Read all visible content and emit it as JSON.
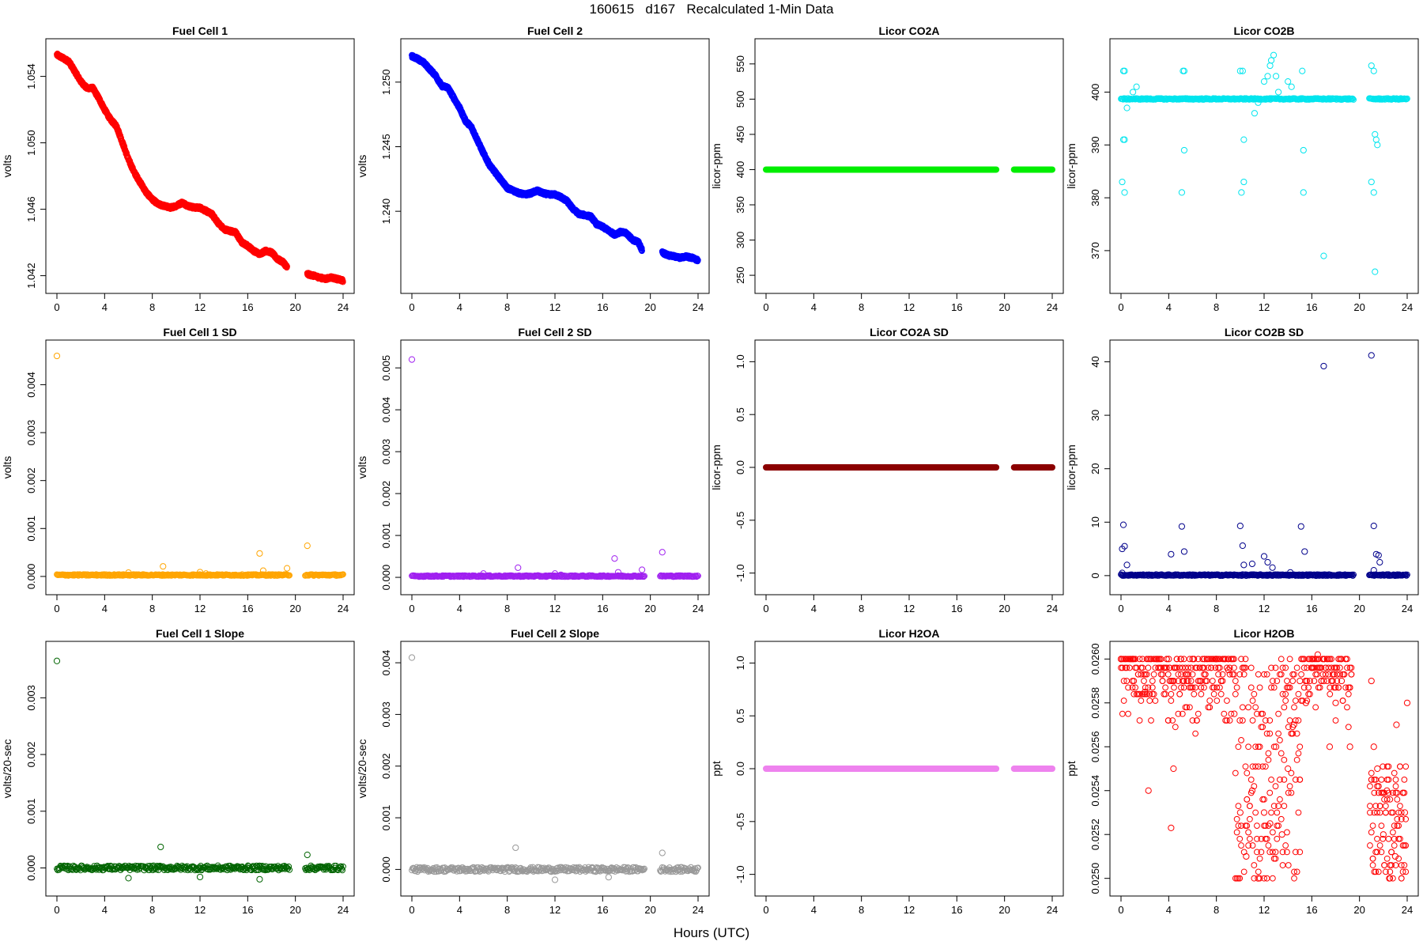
{
  "page": {
    "title": "160615   d167   Recalculated 1-Min Data",
    "xcaption": "Hours (UTC)"
  },
  "chart_data": [
    {
      "id": "fc1",
      "type": "scatter",
      "title": "Fuel Cell 1",
      "ylabel": "volts",
      "color": "#ff0000",
      "xlim": [
        0,
        24
      ],
      "ylim": [
        1.0416,
        1.0556
      ],
      "xticks": [
        "0",
        "4",
        "8",
        "12",
        "16",
        "20",
        "24"
      ],
      "yticks": [
        1.042,
        1.046,
        1.05,
        1.054
      ],
      "ytick_labels": [
        "1.042",
        "1.046",
        "1.050",
        "1.054"
      ],
      "x": [
        0,
        0.5,
        1,
        1.5,
        2,
        2.5,
        3,
        3.5,
        4,
        4.5,
        5,
        5.5,
        6,
        6.5,
        7,
        7.5,
        8,
        8.5,
        9,
        9.5,
        10,
        10.5,
        11,
        11.5,
        12,
        12.5,
        13,
        13.5,
        14,
        14.5,
        15,
        15.5,
        16,
        16.5,
        17,
        17.5,
        18,
        18.5,
        19,
        19.3,
        21,
        21.5,
        22,
        22.5,
        23,
        23.5,
        24
      ],
      "y": [
        1.0553,
        1.0551,
        1.0549,
        1.0543,
        1.0537,
        1.0533,
        1.0533,
        1.0527,
        1.052,
        1.0514,
        1.051,
        1.05,
        1.049,
        1.0482,
        1.0476,
        1.047,
        1.0466,
        1.0463,
        1.0462,
        1.0461,
        1.0462,
        1.0464,
        1.0462,
        1.0461,
        1.0461,
        1.0459,
        1.0457,
        1.0452,
        1.0448,
        1.0447,
        1.0446,
        1.044,
        1.0438,
        1.0435,
        1.0433,
        1.0435,
        1.0434,
        1.043,
        1.0428,
        1.0425,
        1.0421,
        1.042,
        1.0419,
        1.0418,
        1.0419,
        1.0418,
        1.0417
      ]
    },
    {
      "id": "fc2",
      "type": "scatter",
      "title": "Fuel Cell 2",
      "ylabel": "volts",
      "color": "#0000ff",
      "xlim": [
        0,
        24
      ],
      "ylim": [
        1.2345,
        1.2525
      ],
      "xticks": [
        "0",
        "4",
        "8",
        "12",
        "16",
        "20",
        "24"
      ],
      "yticks": [
        1.24,
        1.245,
        1.25
      ],
      "ytick_labels": [
        "1.240",
        "1.245",
        "1.250"
      ],
      "x": [
        0,
        0.5,
        1,
        1.5,
        2,
        2.5,
        3,
        3.5,
        4,
        4.5,
        5,
        5.5,
        6,
        6.5,
        7,
        7.5,
        8,
        8.5,
        9,
        9.5,
        10,
        10.5,
        11,
        11.5,
        12,
        12.5,
        13,
        13.5,
        14,
        14.5,
        15,
        15.5,
        16,
        16.5,
        17,
        17.5,
        18,
        18.5,
        19,
        19.3,
        21,
        21.5,
        22,
        22.5,
        23,
        23.5,
        24
      ],
      "y": [
        1.252,
        1.2518,
        1.2515,
        1.251,
        1.2505,
        1.2497,
        1.2496,
        1.2488,
        1.248,
        1.247,
        1.2465,
        1.2455,
        1.2445,
        1.2436,
        1.243,
        1.2424,
        1.2418,
        1.2416,
        1.2414,
        1.2413,
        1.2414,
        1.2416,
        1.2414,
        1.2413,
        1.2413,
        1.2411,
        1.2408,
        1.2402,
        1.2398,
        1.2397,
        1.2396,
        1.239,
        1.2388,
        1.2385,
        1.2382,
        1.2384,
        1.2383,
        1.2378,
        1.2376,
        1.237,
        1.2368,
        1.2366,
        1.2365,
        1.2364,
        1.2365,
        1.2364,
        1.2362
      ]
    },
    {
      "id": "co2a",
      "type": "scatter",
      "title": "Licor CO2A",
      "ylabel": "licor-ppm",
      "color": "#00ee00",
      "xlim": [
        0,
        24
      ],
      "ylim": [
        240,
        570
      ],
      "xticks": [
        "0",
        "4",
        "8",
        "12",
        "16",
        "20",
        "24"
      ],
      "yticks": [
        250,
        300,
        350,
        400,
        450,
        500,
        550
      ],
      "ytick_labels": [
        "250",
        "300",
        "350",
        "400",
        "450",
        "500",
        "550"
      ],
      "segments": [
        {
          "x0": 0,
          "x1": 19.3,
          "y": 400
        },
        {
          "x0": 20.8,
          "x1": 24,
          "y": 400
        }
      ]
    },
    {
      "id": "co2b",
      "type": "scatter",
      "title": "Licor CO2B",
      "ylabel": "licor-ppm",
      "color": "#00e5ee",
      "xlim": [
        0,
        24
      ],
      "ylim": [
        364,
        408
      ],
      "xticks": [
        "0",
        "4",
        "8",
        "12",
        "16",
        "20",
        "24"
      ],
      "yticks": [
        370,
        380,
        390,
        400
      ],
      "ytick_labels": [
        "370",
        "380",
        "390",
        "400"
      ],
      "baseline": {
        "x0": 0,
        "x1": 24,
        "y": 398.7,
        "gap": [
          19.5,
          20.8
        ]
      },
      "x": [
        0.2,
        0.3,
        0.2,
        0.3,
        0.3,
        0.5,
        0.1,
        1.0,
        1.3,
        5.2,
        5.3,
        5.1,
        5.3,
        10.0,
        10.2,
        10.3,
        10.1,
        10.3,
        11.2,
        11.5,
        12.0,
        12.3,
        12.5,
        12.6,
        12.8,
        13.0,
        13.2,
        14.0,
        14.3,
        15.2,
        15.3,
        15.3,
        17.0,
        21.0,
        21.2,
        21.3,
        21.4,
        21.5,
        21.2,
        21.0,
        21.3
      ],
      "y": [
        404,
        404,
        391,
        391,
        381,
        397,
        383,
        400,
        401,
        404,
        404,
        381,
        389,
        404,
        404,
        391,
        381,
        383,
        396,
        398,
        402,
        403,
        405,
        406,
        407,
        403,
        400,
        402,
        401,
        404,
        381,
        389,
        369,
        405,
        404,
        392,
        391,
        390,
        381,
        383,
        366
      ]
    },
    {
      "id": "fc1sd",
      "type": "scatter",
      "title": "Fuel Cell 1 SD",
      "ylabel": "volts",
      "color": "#ffa500",
      "xlim": [
        0,
        24
      ],
      "ylim": [
        -0.00015,
        0.0047
      ],
      "xticks": [
        "0",
        "4",
        "8",
        "12",
        "16",
        "20",
        "24"
      ],
      "yticks": [
        0,
        0.001,
        0.002,
        0.003,
        0.004
      ],
      "ytick_labels": [
        "0.000",
        "0.001",
        "0.002",
        "0.003",
        "0.004"
      ],
      "baseline": {
        "x0": 0,
        "x1": 24,
        "y": 3e-05,
        "gap": [
          19.5,
          20.8
        ]
      },
      "x": [
        0,
        6,
        8.9,
        12,
        17,
        17.3,
        19.3,
        21,
        12.5
      ],
      "y": [
        0.0046,
        8e-05,
        0.00021,
        9e-05,
        0.00048,
        0.00012,
        0.00017,
        0.00064,
        6e-05
      ]
    },
    {
      "id": "fc2sd",
      "type": "scatter",
      "title": "Fuel Cell 2 SD",
      "ylabel": "volts",
      "color": "#a020f0",
      "xlim": [
        0,
        24
      ],
      "ylim": [
        -0.00015,
        0.0054
      ],
      "xticks": [
        "0",
        "4",
        "8",
        "12",
        "16",
        "20",
        "24"
      ],
      "yticks": [
        0,
        0.001,
        0.002,
        0.003,
        0.004,
        0.005
      ],
      "ytick_labels": [
        "0.000",
        "0.001",
        "0.002",
        "0.003",
        "0.004",
        "0.005"
      ],
      "baseline": {
        "x0": 0,
        "x1": 24,
        "y": 3e-05,
        "gap": [
          19.5,
          20.8
        ]
      },
      "x": [
        0,
        6,
        8.9,
        12,
        17,
        17.3,
        19.3,
        21,
        12.5
      ],
      "y": [
        0.0052,
        9e-05,
        0.00023,
        9e-05,
        0.00045,
        0.00012,
        0.00018,
        0.0006,
        6e-05
      ]
    },
    {
      "id": "co2asd",
      "type": "scatter",
      "title": "Licor CO2A SD",
      "ylabel": "licor-ppm",
      "color": "#8b0000",
      "xlim": [
        0,
        24
      ],
      "ylim": [
        -1.1,
        1.1
      ],
      "xticks": [
        "0",
        "4",
        "8",
        "12",
        "16",
        "20",
        "24"
      ],
      "yticks": [
        -1,
        -0.5,
        0,
        0.5,
        1
      ],
      "ytick_labels": [
        "-1.0",
        "-0.5",
        "0.0",
        "0.5",
        "1.0"
      ],
      "segments": [
        {
          "x0": 0,
          "x1": 19.3,
          "y": 0
        },
        {
          "x0": 20.8,
          "x1": 24,
          "y": 0
        }
      ]
    },
    {
      "id": "co2bsd",
      "type": "scatter",
      "title": "Licor CO2B SD",
      "ylabel": "licor-ppm",
      "color": "#00008b",
      "xlim": [
        0,
        24
      ],
      "ylim": [
        -1.5,
        42
      ],
      "xticks": [
        "0",
        "4",
        "8",
        "12",
        "16",
        "20",
        "24"
      ],
      "yticks": [
        0,
        10,
        20,
        30,
        40
      ],
      "ytick_labels": [
        "0",
        "10",
        "20",
        "30",
        "40"
      ],
      "baseline": {
        "x0": 0,
        "x1": 24,
        "y": 0.1,
        "gap": [
          19.5,
          20.8
        ]
      },
      "x": [
        0.1,
        0.2,
        0.3,
        0.5,
        0.1,
        4.2,
        5.1,
        5.3,
        10.0,
        10.2,
        10.3,
        11.0,
        12.0,
        12.3,
        12.7,
        14.2,
        15.1,
        15.4,
        17.0,
        21.0,
        21.2,
        21.4,
        21.6,
        21.7,
        21.2
      ],
      "y": [
        5,
        9.5,
        5.5,
        2,
        0.5,
        4,
        9.2,
        4.5,
        9.3,
        5.6,
        2,
        2.2,
        3.6,
        2.5,
        1.5,
        0.6,
        9.2,
        4.5,
        39.2,
        41.2,
        9.3,
        4,
        3.8,
        2.5,
        1
      ]
    },
    {
      "id": "fc1slope",
      "type": "scatter",
      "title": "Fuel Cell 1 Slope",
      "ylabel": "volts/20-sec",
      "color": "#006400",
      "xlim": [
        0,
        24
      ],
      "ylim": [
        -0.0003,
        0.0038
      ],
      "xticks": [
        "0",
        "4",
        "8",
        "12",
        "16",
        "20",
        "24"
      ],
      "yticks": [
        0,
        0.001,
        0.002,
        0.003
      ],
      "ytick_labels": [
        "0.000",
        "0.001",
        "0.002",
        "0.003"
      ],
      "baseline": {
        "x0": 0,
        "x1": 24,
        "y": 0,
        "gap": [
          19.5,
          20.8
        ]
      },
      "x": [
        0,
        8.7,
        21,
        6,
        12,
        17
      ],
      "y": [
        0.00365,
        0.00037,
        0.00023,
        -0.00018,
        -0.00016,
        -0.0002
      ]
    },
    {
      "id": "fc2slope",
      "type": "scatter",
      "title": "Fuel Cell 2 Slope",
      "ylabel": "volts/20-sec",
      "color": "#999999",
      "xlim": [
        0,
        24
      ],
      "ylim": [
        -0.0003,
        0.0042
      ],
      "xticks": [
        "0",
        "4",
        "8",
        "12",
        "16",
        "20",
        "24"
      ],
      "yticks": [
        0,
        0.001,
        0.002,
        0.003,
        0.004
      ],
      "ytick_labels": [
        "0.000",
        "0.001",
        "0.002",
        "0.003",
        "0.004"
      ],
      "baseline": {
        "x0": 0,
        "x1": 24,
        "y": 0,
        "gap": [
          19.5,
          20.8
        ]
      },
      "x": [
        0,
        8.7,
        21,
        12,
        16.5
      ],
      "y": [
        0.0041,
        0.00042,
        0.00032,
        -0.0002,
        -0.00015
      ]
    },
    {
      "id": "h2oa",
      "type": "scatter",
      "title": "Licor H2OA",
      "ylabel": "ppt",
      "color": "#ee82ee",
      "xlim": [
        0,
        24
      ],
      "ylim": [
        -1.1,
        1.1
      ],
      "xticks": [
        "0",
        "4",
        "8",
        "12",
        "16",
        "20",
        "24"
      ],
      "yticks": [
        -1,
        -0.5,
        0,
        0.5,
        1
      ],
      "ytick_labels": [
        "-1.0",
        "-0.5",
        "0.0",
        "0.5",
        "1.0"
      ],
      "segments": [
        {
          "x0": 0,
          "x1": 19.3,
          "y": 0
        },
        {
          "x0": 20.8,
          "x1": 24,
          "y": 0
        }
      ]
    },
    {
      "id": "h2ob",
      "type": "scatter",
      "title": "Licor H2OB",
      "ylabel": "ppt",
      "color": "#ff0000",
      "xlim": [
        0,
        24
      ],
      "ylim": [
        0.02497,
        0.02603
      ],
      "xticks": [
        "0",
        "4",
        "8",
        "12",
        "16",
        "20",
        "24"
      ],
      "yticks": [
        0.025,
        0.0252,
        0.0254,
        0.0256,
        0.0258,
        0.026
      ],
      "ytick_labels": [
        "0.0250",
        "0.0252",
        "0.0254",
        "0.0256",
        "0.0258",
        "0.0260"
      ],
      "levels": [
        0.025,
        0.02503,
        0.02506,
        0.02509,
        0.02512,
        0.02515,
        0.02518,
        0.02521,
        0.02524,
        0.02527,
        0.0253,
        0.02533,
        0.02536,
        0.02539,
        0.02542,
        0.02545,
        0.02548,
        0.02551,
        0.02554,
        0.02557,
        0.0256,
        0.02563,
        0.02566,
        0.02569,
        0.02572,
        0.02575,
        0.02578,
        0.02581,
        0.02584,
        0.02587,
        0.0259,
        0.02593,
        0.02596,
        0.026
      ],
      "x": [
        0,
        1,
        2,
        2.3,
        4,
        4.2,
        4.4,
        5,
        6,
        7,
        8,
        9,
        9.5,
        10,
        10.5,
        11,
        11.5,
        12,
        12.5,
        13,
        13.5,
        14,
        14.5,
        15,
        15.5,
        16,
        16.5,
        17,
        17.5,
        18,
        18.5,
        19.2,
        21,
        21.5,
        22,
        22.5,
        23,
        23.5,
        24,
        21.2,
        22.3,
        23.1,
        23.8
      ],
      "y": [
        0.026,
        0.026,
        0.02585,
        0.0254,
        0.026,
        0.02523,
        0.0255,
        0.026,
        0.026,
        0.026,
        0.026,
        0.02595,
        0.02575,
        0.0253,
        0.0251,
        0.0254,
        0.025,
        0.0253,
        0.02525,
        0.0256,
        0.0252,
        0.0255,
        0.0257,
        0.0259,
        0.0258,
        0.026,
        0.02602,
        0.0259,
        0.0256,
        0.0258,
        0.0259,
        0.0256,
        0.0259,
        0.0255,
        0.0252,
        0.025,
        0.0251,
        0.0253,
        0.0258,
        0.0256,
        0.0254,
        0.0257,
        0.0253
      ]
    }
  ]
}
